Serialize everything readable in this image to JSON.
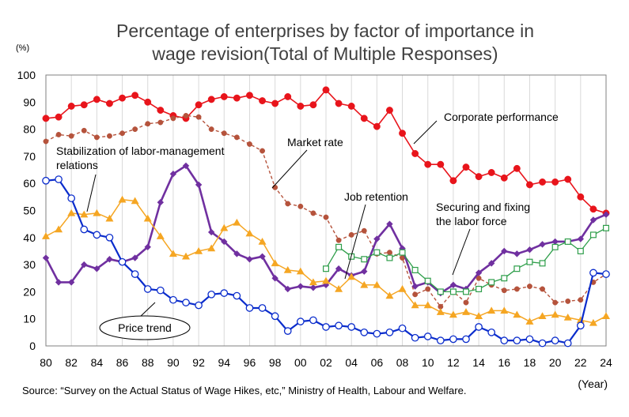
{
  "chart_data": {
    "type": "line",
    "title": "Percentage of enterprises by factor of importance in wage revision(Total of Multiple Responses)",
    "ylabel": "(%)",
    "xlabel": "(Year)",
    "source": "Source: “Survey on the Actual Status of Wage Hikes, etc,” Ministry of Health, Labour and Welfare.",
    "ylim": [
      0,
      100
    ],
    "xlim": [
      1980,
      2024
    ],
    "y_ticks": [
      "0",
      "10",
      "20",
      "30",
      "40",
      "50",
      "60",
      "70",
      "80",
      "90",
      "100"
    ],
    "x_ticks": [
      "80",
      "82",
      "84",
      "86",
      "88",
      "90",
      "92",
      "94",
      "96",
      "98",
      "00",
      "02",
      "04",
      "06",
      "08",
      "10",
      "12",
      "14",
      "16",
      "18",
      "20",
      "22",
      "24"
    ],
    "grid": "vertical",
    "series": [
      {
        "name": "Corporate performance",
        "color": "#e8141b",
        "x": [
          1980,
          1981,
          1982,
          1983,
          1984,
          1985,
          1986,
          1987,
          1988,
          1989,
          1990,
          1991,
          1992,
          1993,
          1994,
          1995,
          1996,
          1997,
          1998,
          1999,
          2000,
          2001,
          2002,
          2003,
          2004,
          2005,
          2006,
          2007,
          2008,
          2009,
          2010,
          2011,
          2012,
          2013,
          2014,
          2015,
          2016,
          2017,
          2018,
          2019,
          2020,
          2021,
          2022,
          2023,
          2024
        ],
        "values": [
          84,
          84.5,
          88.5,
          89,
          91,
          89.5,
          91.5,
          92.5,
          90,
          87,
          85,
          84,
          89,
          91,
          92,
          91.5,
          92.5,
          90.5,
          89.5,
          92,
          88.5,
          89,
          94.5,
          89.5,
          88.5,
          84,
          81,
          87,
          78.5,
          71,
          67,
          67,
          61,
          66,
          62.5,
          64,
          62,
          65.5,
          59.5,
          60.5,
          60.5,
          61.5,
          55,
          50.5,
          49
        ]
      },
      {
        "name": "Market rate",
        "color": "#b5533c",
        "x": [
          1980,
          1981,
          1982,
          1983,
          1984,
          1985,
          1986,
          1987,
          1988,
          1989,
          1990,
          1991,
          1992,
          1993,
          1994,
          1995,
          1996,
          1997,
          1998,
          1999,
          2000,
          2001,
          2002,
          2003,
          2004,
          2005,
          2006,
          2007,
          2008,
          2009,
          2010,
          2011,
          2012,
          2013,
          2014,
          2015,
          2016,
          2017,
          2018,
          2019,
          2020,
          2021,
          2022,
          2023,
          2024
        ],
        "values": [
          75.5,
          78,
          77.5,
          79.5,
          77,
          77.5,
          78.5,
          80,
          82,
          82.5,
          84,
          85,
          84.5,
          80,
          78.5,
          77,
          74.5,
          72,
          58.5,
          52.5,
          51.5,
          49,
          47.5,
          39,
          41,
          42.5,
          34,
          34.5,
          32.5,
          19,
          21,
          14.5,
          20,
          16,
          25,
          22.5,
          20.5,
          21,
          22,
          21,
          16,
          16.5,
          17,
          23.5,
          26.5
        ]
      },
      {
        "name": "Stabilization of labor-management relations",
        "color": "#7030a0",
        "x": [
          1980,
          1981,
          1982,
          1983,
          1984,
          1985,
          1986,
          1987,
          1988,
          1989,
          1990,
          1991,
          1992,
          1993,
          1994,
          1995,
          1996,
          1997,
          1998,
          1999,
          2000,
          2001,
          2002,
          2003,
          2004,
          2005,
          2006,
          2007,
          2008,
          2009,
          2010,
          2011,
          2012,
          2013,
          2014,
          2015,
          2016,
          2017,
          2018,
          2019,
          2020,
          2021,
          2022,
          2023,
          2024
        ],
        "values": [
          32.5,
          23.5,
          23.5,
          30,
          28.5,
          32,
          31,
          32.5,
          36.5,
          53,
          63.5,
          66.5,
          59.5,
          42,
          38.5,
          34,
          32,
          33,
          25,
          21,
          22,
          21.5,
          22.5,
          28.5,
          26,
          27.5,
          39.5,
          45,
          36,
          22,
          23.5,
          19.5,
          22.5,
          21,
          27,
          30.5,
          35,
          34,
          35.5,
          37.5,
          38.5,
          38.5,
          39.5,
          46.5,
          48.5
        ]
      },
      {
        "name": "Job retention",
        "color": "#f5a623",
        "x": [
          1980,
          1981,
          1982,
          1983,
          1984,
          1985,
          1986,
          1987,
          1988,
          1989,
          1990,
          1991,
          1992,
          1993,
          1994,
          1995,
          1996,
          1997,
          1998,
          1999,
          2000,
          2001,
          2002,
          2003,
          2004,
          2005,
          2006,
          2007,
          2008,
          2009,
          2010,
          2011,
          2012,
          2013,
          2014,
          2015,
          2016,
          2017,
          2018,
          2019,
          2020,
          2021,
          2022,
          2023,
          2024
        ],
        "values": [
          40.5,
          43,
          49,
          48.5,
          49,
          47,
          54,
          53.5,
          47,
          40.5,
          34,
          33,
          35,
          36,
          43.5,
          45.5,
          41.5,
          38.5,
          30.5,
          28,
          27.5,
          23.5,
          24,
          21,
          25.5,
          22.5,
          22.5,
          18.5,
          21,
          15,
          15,
          12.5,
          11.5,
          12.5,
          11,
          13,
          13,
          11.5,
          9,
          11,
          11.5,
          10.5,
          9.5,
          8.5,
          11
        ]
      },
      {
        "name": "Securing and fixing the labor force",
        "color": "#2e9e4a",
        "x": [
          2002,
          2003,
          2004,
          2005,
          2006,
          2007,
          2008,
          2009,
          2010,
          2011,
          2012,
          2013,
          2014,
          2015,
          2016,
          2017,
          2018,
          2019,
          2020,
          2021,
          2022,
          2023,
          2024
        ],
        "values": [
          28.5,
          36.5,
          33,
          32,
          34.5,
          32.5,
          34.5,
          28,
          24,
          20,
          20,
          20,
          21,
          23.5,
          25,
          28.5,
          31,
          30.5,
          36.5,
          38.5,
          35,
          41,
          43.5
        ]
      },
      {
        "name": "Price trend",
        "color": "#0a2ccc",
        "x": [
          1980,
          1981,
          1982,
          1983,
          1984,
          1985,
          1986,
          1987,
          1988,
          1989,
          1990,
          1991,
          1992,
          1993,
          1994,
          1995,
          1996,
          1997,
          1998,
          1999,
          2000,
          2001,
          2002,
          2003,
          2004,
          2005,
          2006,
          2007,
          2008,
          2009,
          2010,
          2011,
          2012,
          2013,
          2014,
          2015,
          2016,
          2017,
          2018,
          2019,
          2020,
          2021,
          2022,
          2023,
          2024
        ],
        "values": [
          61,
          61.5,
          54.5,
          43,
          41,
          40,
          31,
          26.5,
          21,
          20.5,
          17,
          16,
          15,
          19,
          19.5,
          18.5,
          14,
          14,
          11,
          5.5,
          9,
          9.5,
          7,
          7.5,
          7,
          5,
          4.5,
          5,
          6.5,
          3,
          3.5,
          2,
          2.5,
          2.5,
          7,
          5,
          2,
          2,
          2.5,
          1,
          2,
          1,
          7.5,
          27,
          26.5
        ]
      }
    ],
    "annotations": {
      "corporate": "Corporate performance",
      "market": "Market rate",
      "stab_line1": "Stabilization of labor-management",
      "stab_line2": "relations",
      "job": "Job retention",
      "secure_line1": "Securing and fixing",
      "secure_line2": "the labor force",
      "price": "Price trend"
    }
  }
}
